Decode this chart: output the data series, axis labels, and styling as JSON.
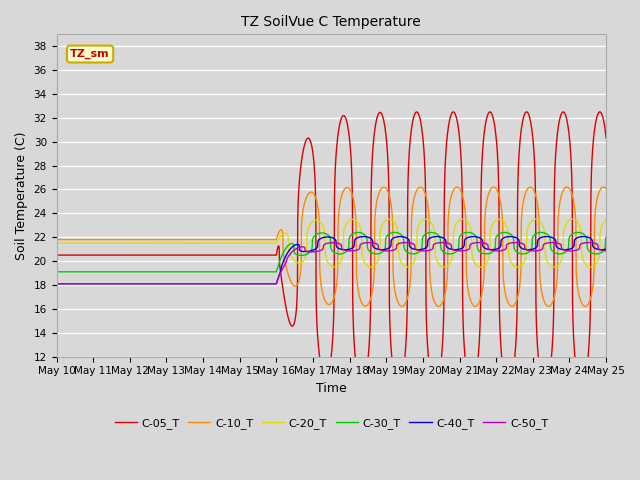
{
  "title": "TZ SoilVue C Temperature",
  "xlabel": "Time",
  "ylabel": "Soil Temperature (C)",
  "ylim": [
    12,
    39
  ],
  "yticks": [
    12,
    14,
    16,
    18,
    20,
    22,
    24,
    26,
    28,
    30,
    32,
    34,
    36,
    38
  ],
  "annotation_text": "TZ_sm",
  "annotation_color": "#cc0000",
  "annotation_bg": "#ffffcc",
  "annotation_border": "#ccaa00",
  "fig_bg": "#d8d8d8",
  "plot_bg": "#d8d8d8",
  "series": [
    {
      "label": "C-05_T",
      "color": "#dd0000",
      "flat_val": 20.5,
      "amp": 11.5,
      "mid": 21.0,
      "phase_shift": 0.0,
      "growth": 2.0
    },
    {
      "label": "C-10_T",
      "color": "#ff8800",
      "flat_val": 21.8,
      "amp": 5.0,
      "mid": 21.2,
      "phase_shift": 0.1,
      "growth": 2.5
    },
    {
      "label": "C-20_T",
      "color": "#dddd00",
      "flat_val": 21.5,
      "amp": 2.0,
      "mid": 21.5,
      "phase_shift": 0.25,
      "growth": 3.0
    },
    {
      "label": "C-30_T",
      "color": "#00cc00",
      "flat_val": 19.1,
      "amp": 0.9,
      "mid": 21.5,
      "phase_shift": 0.4,
      "growth": 3.5
    },
    {
      "label": "C-40_T",
      "color": "#0000ee",
      "flat_val": 18.1,
      "amp": 0.55,
      "mid": 21.5,
      "phase_shift": 0.55,
      "growth": 3.5
    },
    {
      "label": "C-50_T",
      "color": "#bb00bb",
      "flat_val": 18.1,
      "amp": 0.35,
      "mid": 21.2,
      "phase_shift": 0.7,
      "growth": 3.5
    }
  ],
  "transition_day": 6.0,
  "x_start": 0,
  "x_end": 15,
  "n_points": 5000,
  "xtick_days": [
    0,
    1,
    2,
    3,
    4,
    5,
    6,
    7,
    8,
    9,
    10,
    11,
    12,
    13,
    14,
    15
  ],
  "xtick_labels": [
    "May 10",
    "May 11",
    "May 12",
    "May 13",
    "May 14",
    "May 15",
    "May 16",
    "May 17",
    "May 18",
    "May 19",
    "May 20",
    "May 21",
    "May 22",
    "May 23",
    "May 24",
    "May 25"
  ],
  "linewidth": 1.0,
  "grid_color": "#ffffff",
  "grid_lw": 1.0
}
